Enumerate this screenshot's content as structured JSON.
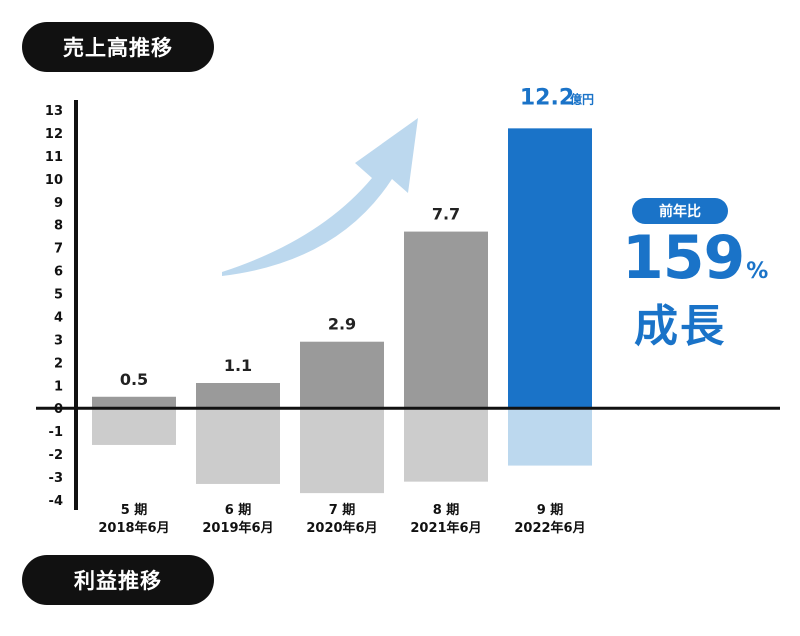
{
  "pills": {
    "top": "売上高推移",
    "bottom": "利益推移"
  },
  "callout": {
    "badge": "前年比",
    "growth_number": "159",
    "growth_unit": "%",
    "growth_word": "成長"
  },
  "colors": {
    "bar_gray": "#9a9a9a",
    "bar_gray_light": "#cccccc",
    "bar_blue": "#1a73c8",
    "bar_blue_light": "#bcd8ee",
    "arrow": "#bcd8ee",
    "accent": "#1a73c8"
  },
  "chart_data": {
    "type": "bar",
    "title": "",
    "xlabel": "",
    "ylabel": "",
    "ylim": [
      -4,
      13
    ],
    "yticks": [
      13,
      12,
      11,
      10,
      9,
      8,
      7,
      6,
      5,
      4,
      3,
      2,
      1,
      0,
      -1,
      -2,
      -3,
      -4
    ],
    "categories": [
      {
        "period": "5 期",
        "date": "2018年6月"
      },
      {
        "period": "6 期",
        "date": "2019年6月"
      },
      {
        "period": "7 期",
        "date": "2020年6月"
      },
      {
        "period": "8 期",
        "date": "2021年6月"
      },
      {
        "period": "9 期",
        "date": "2022年6月"
      }
    ],
    "series": [
      {
        "values": [
          0.5,
          1.1,
          2.9,
          7.7,
          12.2
        ],
        "labels": [
          "0.5",
          "1.1",
          "2.9",
          "7.7",
          "12.2"
        ]
      },
      {
        "values": [
          -1.6,
          -3.3,
          -3.7,
          -3.2,
          -2.5
        ]
      }
    ],
    "highlight_unit": "億円",
    "highlight_index": 4
  }
}
